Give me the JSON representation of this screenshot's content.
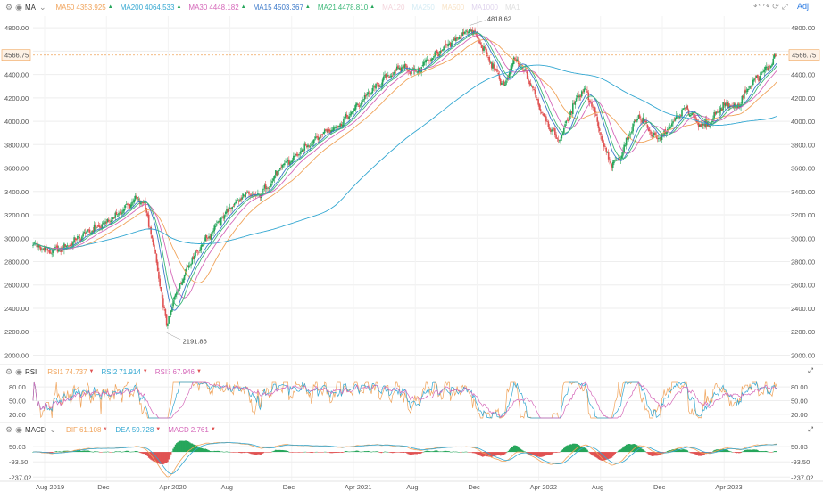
{
  "toolbar": {
    "adj_label": "Adj"
  },
  "main_legend": {
    "indicator": "MA",
    "items": [
      {
        "name": "MA50",
        "value": "4353.925",
        "color": "#f0a35a",
        "dim": false,
        "arrow": "▲"
      },
      {
        "name": "MA200",
        "value": "4064.533",
        "color": "#33a7d1",
        "dim": false,
        "arrow": "▲"
      },
      {
        "name": "MA30",
        "value": "4448.182",
        "color": "#d568b9",
        "dim": false,
        "arrow": "▲"
      },
      {
        "name": "MA15",
        "value": "4503.367",
        "color": "#3a78c9",
        "dim": false,
        "arrow": "▲"
      },
      {
        "name": "MA21",
        "value": "4478.810",
        "color": "#3cb878",
        "dim": false,
        "arrow": "▲"
      },
      {
        "name": "MA120",
        "value": "",
        "color": "#e6a0b0",
        "dim": true,
        "arrow": ""
      },
      {
        "name": "MA250",
        "value": "",
        "color": "#9fd5e8",
        "dim": true,
        "arrow": ""
      },
      {
        "name": "MA500",
        "value": "",
        "color": "#f0c080",
        "dim": true,
        "arrow": ""
      },
      {
        "name": "MA1000",
        "value": "",
        "color": "#b9a0d8",
        "dim": true,
        "arrow": ""
      },
      {
        "name": "MA1",
        "value": "",
        "color": "#bbbbbb",
        "dim": true,
        "arrow": ""
      }
    ]
  },
  "rsi_legend": {
    "indicator": "RSI",
    "items": [
      {
        "name": "RSI1",
        "value": "74.737",
        "color": "#f0a35a",
        "arrow": "▼"
      },
      {
        "name": "RSI2",
        "value": "71.914",
        "color": "#33a7d1",
        "arrow": "▼"
      },
      {
        "name": "RSI3",
        "value": "67.946",
        "color": "#d568b9",
        "arrow": "▼"
      }
    ]
  },
  "macd_legend": {
    "indicator": "MACD",
    "items": [
      {
        "name": "DIF",
        "value": "61.108",
        "color": "#f0a35a",
        "arrow": "▼"
      },
      {
        "name": "DEA",
        "value": "59.728",
        "color": "#33a7d1",
        "arrow": "▼"
      },
      {
        "name": "MACD",
        "value": "2.761",
        "color": "#d568b9",
        "arrow": "▼"
      }
    ]
  },
  "colors": {
    "up": "#26a65b",
    "down": "#e05252",
    "grid": "#eeeeee",
    "price_line": "#f0a35a"
  },
  "chart_data": [
    {
      "type": "candlestick",
      "y_ticks": [
        "4800.00",
        "4600.00",
        "4400.00",
        "4200.00",
        "4000.00",
        "3800.00",
        "3600.00",
        "3400.00",
        "3200.00",
        "3000.00",
        "2800.00",
        "2600.00",
        "2400.00",
        "2200.00",
        "2000.00"
      ],
      "y_tick_values": [
        4800,
        4600,
        4400,
        4200,
        4000,
        3800,
        3600,
        3400,
        3200,
        3000,
        2800,
        2600,
        2400,
        2200,
        2000
      ],
      "ylim": [
        1950,
        4900
      ],
      "current_price": 4566.75,
      "current_price_label": "4566.75",
      "high_annotation": {
        "label": "4818.62",
        "value": 4818.62,
        "date": "Jan 2022"
      },
      "low_annotation": {
        "label": "2191.86",
        "value": 2191.86,
        "date": "Mar 2020"
      },
      "x_labels": [
        "Aug 2019",
        "Dec",
        "Apr 2020",
        "Aug",
        "Dec",
        "Apr 2021",
        "Aug",
        "Dec",
        "Apr 2022",
        "Aug",
        "Dec",
        "Apr 2023"
      ],
      "close_anchors": [
        [
          0,
          2950
        ],
        [
          4,
          2880
        ],
        [
          8,
          2940
        ],
        [
          12,
          3050
        ],
        [
          16,
          3120
        ],
        [
          20,
          3230
        ],
        [
          23,
          3340
        ],
        [
          25,
          3300
        ],
        [
          27,
          2950
        ],
        [
          29,
          2480
        ],
        [
          30,
          2250
        ],
        [
          32,
          2520
        ],
        [
          35,
          2780
        ],
        [
          38,
          2950
        ],
        [
          41,
          3100
        ],
        [
          44,
          3250
        ],
        [
          46,
          3320
        ],
        [
          48,
          3380
        ],
        [
          50,
          3350
        ],
        [
          53,
          3450
        ],
        [
          56,
          3620
        ],
        [
          59,
          3700
        ],
        [
          62,
          3800
        ],
        [
          65,
          3900
        ],
        [
          68,
          3950
        ],
        [
          71,
          4050
        ],
        [
          74,
          4180
        ],
        [
          77,
          4300
        ],
        [
          80,
          4390
        ],
        [
          83,
          4470
        ],
        [
          86,
          4420
        ],
        [
          89,
          4530
        ],
        [
          92,
          4610
        ],
        [
          95,
          4700
        ],
        [
          97,
          4760
        ],
        [
          98,
          4790
        ],
        [
          100,
          4700
        ],
        [
          102,
          4560
        ],
        [
          104,
          4420
        ],
        [
          106,
          4300
        ],
        [
          108,
          4530
        ],
        [
          110,
          4450
        ],
        [
          112,
          4300
        ],
        [
          114,
          4100
        ],
        [
          116,
          3950
        ],
        [
          118,
          3830
        ],
        [
          120,
          4000
        ],
        [
          122,
          4200
        ],
        [
          124,
          4280
        ],
        [
          126,
          4100
        ],
        [
          128,
          3800
        ],
        [
          130,
          3620
        ],
        [
          132,
          3700
        ],
        [
          134,
          3900
        ],
        [
          136,
          4050
        ],
        [
          138,
          3950
        ],
        [
          140,
          3840
        ],
        [
          142,
          3900
        ],
        [
          144,
          4000
        ],
        [
          146,
          4100
        ],
        [
          148,
          4070
        ],
        [
          150,
          3950
        ],
        [
          152,
          3980
        ],
        [
          154,
          4100
        ],
        [
          156,
          4150
        ],
        [
          158,
          4110
        ],
        [
          160,
          4250
        ],
        [
          162,
          4350
        ],
        [
          164,
          4420
        ],
        [
          166,
          4500
        ],
        [
          167,
          4566.75
        ]
      ],
      "ma_lines": [
        {
          "name": "MA50",
          "color": "#f0a35a",
          "period": 10
        },
        {
          "name": "MA200",
          "color": "#33a7d1",
          "period": 40
        },
        {
          "name": "MA30",
          "color": "#d568b9",
          "period": 6
        },
        {
          "name": "MA15",
          "color": "#3a78c9",
          "period": 3
        },
        {
          "name": "MA21",
          "color": "#3cb878",
          "period": 4
        }
      ]
    },
    {
      "type": "line",
      "name": "RSI",
      "y_ticks": [
        "80.00",
        "50.00",
        "20.00"
      ],
      "y_tick_values": [
        80,
        50,
        20
      ],
      "ylim": [
        10,
        92
      ]
    },
    {
      "type": "bar",
      "name": "MACD",
      "y_ticks": [
        "50.03",
        "-93.50",
        "-237.02"
      ],
      "y_tick_values": [
        50.03,
        -93.5,
        -237.02
      ],
      "ylim": [
        -260,
        110
      ]
    }
  ]
}
